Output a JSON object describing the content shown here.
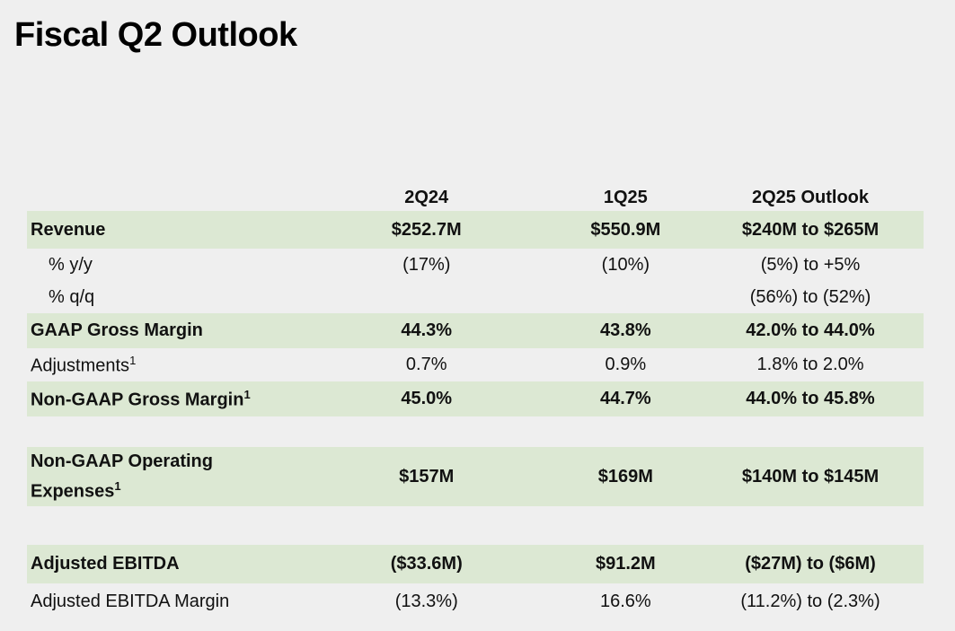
{
  "title": "Fiscal Q2 Outlook",
  "columns": [
    "2Q24",
    "1Q25",
    "2Q25 Outlook"
  ],
  "rows": [
    {
      "label": "Revenue",
      "values": [
        "$252.7M",
        "$550.9M",
        "$240M to $265M"
      ]
    },
    {
      "label": "% y/y",
      "values": [
        "(17%)",
        "(10%)",
        "(5%) to +5%"
      ]
    },
    {
      "label": "% q/q",
      "values": [
        "",
        "",
        "(56%) to (52%)"
      ]
    },
    {
      "label": "GAAP Gross Margin",
      "values": [
        "44.3%",
        "43.8%",
        "42.0% to 44.0%"
      ]
    },
    {
      "label": "Adjustments",
      "label_sup": "1",
      "values": [
        "0.7%",
        "0.9%",
        "1.8% to 2.0%"
      ]
    },
    {
      "label": "Non-GAAP Gross Margin",
      "label_sup": "1",
      "values": [
        "45.0%",
        "44.7%",
        "44.0% to 45.8%"
      ]
    },
    {
      "label_line1": "Non-GAAP Operating",
      "label_line2": "Expenses",
      "label_sup": "1",
      "values": [
        "$157M",
        "$169M",
        "$140M to $145M"
      ]
    },
    {
      "label": "Adjusted EBITDA",
      "values": [
        "($33.6M)",
        "$91.2M",
        "($27M) to ($6M)"
      ]
    },
    {
      "label": "Adjusted EBITDA Margin",
      "values": [
        "(13.3%)",
        "16.6%",
        "(11.2%) to (2.3%)"
      ]
    }
  ],
  "colors": {
    "background": "#efefef",
    "row_highlight": "#dce8d3"
  }
}
